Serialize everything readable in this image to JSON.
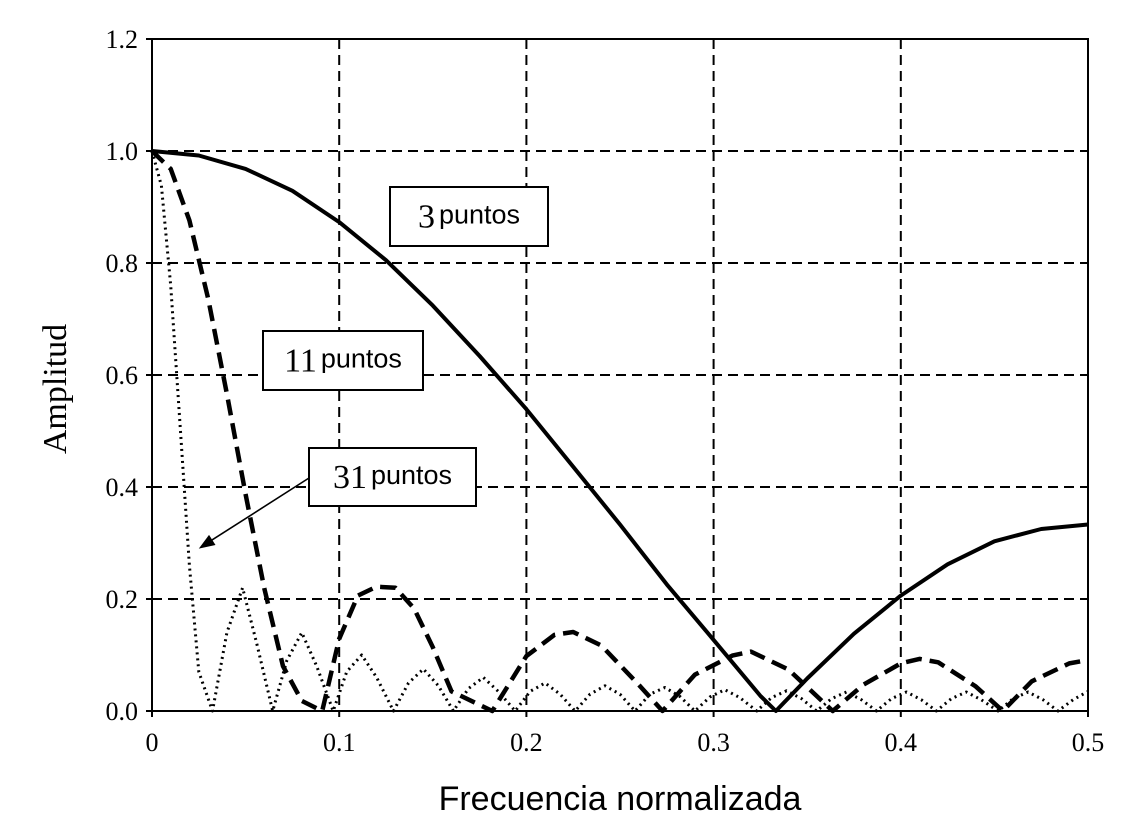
{
  "chart_data": {
    "type": "line",
    "title": "",
    "xlabel": "Frecuencia normalizada",
    "ylabel": "Amplitud",
    "xlim": [
      0,
      0.5
    ],
    "ylim": [
      0,
      1.2
    ],
    "xticks": [
      "0",
      "0.1",
      "0.2",
      "0.3",
      "0.4",
      "0.5"
    ],
    "yticks": [
      "0.0",
      "0.2",
      "0.4",
      "0.6",
      "0.8",
      "1.0",
      "1.2"
    ],
    "grid": true,
    "series": [
      {
        "name": "3 puntos",
        "label_number": "3",
        "label_word": "puntos",
        "points": 3,
        "style": "solid",
        "x": [
          0,
          0.025,
          0.05,
          0.075,
          0.1,
          0.125,
          0.15,
          0.175,
          0.2,
          0.225,
          0.25,
          0.275,
          0.3,
          0.325,
          0.3333,
          0.35,
          0.375,
          0.4,
          0.425,
          0.45,
          0.475,
          0.5
        ],
        "values": [
          1.0,
          0.992,
          0.968,
          0.929,
          0.873,
          0.805,
          0.724,
          0.634,
          0.539,
          0.436,
          0.333,
          0.226,
          0.127,
          0.027,
          0.0,
          0.058,
          0.138,
          0.206,
          0.262,
          0.303,
          0.325,
          0.333
        ]
      },
      {
        "name": "11 puntos",
        "label_number": "11",
        "label_word": "puntos",
        "points": 11,
        "style": "dashed",
        "x": [
          0,
          0.01,
          0.02,
          0.03,
          0.04,
          0.05,
          0.06,
          0.07,
          0.08,
          0.0909,
          0.1,
          0.11,
          0.12,
          0.13,
          0.14,
          0.15,
          0.16,
          0.1818,
          0.2,
          0.215,
          0.225,
          0.24,
          0.26,
          0.2727,
          0.29,
          0.31,
          0.32,
          0.34,
          0.3636,
          0.38,
          0.4,
          0.41,
          0.42,
          0.44,
          0.4545,
          0.47,
          0.49,
          0.5
        ],
        "values": [
          1.0,
          0.968,
          0.876,
          0.736,
          0.566,
          0.387,
          0.219,
          0.08,
          0.018,
          0.0,
          0.129,
          0.206,
          0.222,
          0.22,
          0.183,
          0.114,
          0.035,
          0.0,
          0.098,
          0.136,
          0.141,
          0.117,
          0.047,
          0.0,
          0.065,
          0.099,
          0.106,
          0.074,
          0.0,
          0.047,
          0.085,
          0.093,
          0.087,
          0.044,
          0.0,
          0.053,
          0.085,
          0.091
        ]
      },
      {
        "name": "31 puntos",
        "label_number": "31",
        "label_word": "puntos",
        "points": 31,
        "style": "dotted",
        "x": [
          0,
          0.005,
          0.01,
          0.015,
          0.02,
          0.025,
          0.0323,
          0.04,
          0.0484,
          0.056,
          0.0645,
          0.072,
          0.08,
          0.088,
          0.0968,
          0.104,
          0.112,
          0.12,
          0.129,
          0.137,
          0.145,
          0.153,
          0.161,
          0.169,
          0.177,
          0.185,
          0.194,
          0.202,
          0.21,
          0.218,
          0.226,
          0.234,
          0.242,
          0.25,
          0.258,
          0.266,
          0.274,
          0.282,
          0.29,
          0.298,
          0.306,
          0.314,
          0.323,
          0.331,
          0.339,
          0.347,
          0.355,
          0.363,
          0.371,
          0.379,
          0.387,
          0.395,
          0.403,
          0.411,
          0.419,
          0.427,
          0.435,
          0.443,
          0.452,
          0.46,
          0.468,
          0.476,
          0.484,
          0.492,
          0.5
        ],
        "values": [
          1.0,
          0.938,
          0.76,
          0.51,
          0.26,
          0.07,
          0.0,
          0.14,
          0.22,
          0.12,
          0.0,
          0.09,
          0.14,
          0.08,
          0.0,
          0.07,
          0.1,
          0.06,
          0.0,
          0.05,
          0.075,
          0.045,
          0.0,
          0.04,
          0.06,
          0.035,
          0.0,
          0.035,
          0.05,
          0.03,
          0.0,
          0.03,
          0.045,
          0.03,
          0.0,
          0.03,
          0.042,
          0.026,
          0.0,
          0.025,
          0.038,
          0.024,
          0.0,
          0.024,
          0.036,
          0.022,
          0.0,
          0.022,
          0.034,
          0.02,
          0.0,
          0.022,
          0.034,
          0.02,
          0.0,
          0.022,
          0.034,
          0.02,
          0.0,
          0.022,
          0.034,
          0.02,
          0.0,
          0.02,
          0.035
        ]
      }
    ],
    "annotations": [
      {
        "series": "31 puntos",
        "type": "arrow",
        "target_x": 0.025,
        "target_y": 0.29
      }
    ]
  }
}
